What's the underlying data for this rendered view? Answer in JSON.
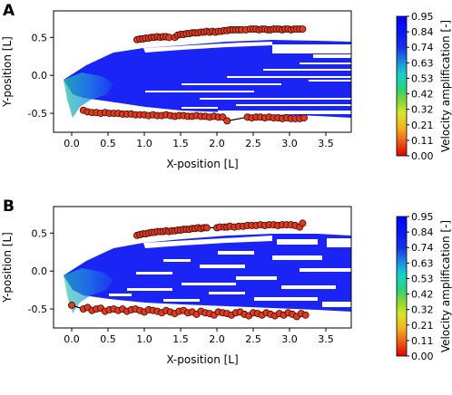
{
  "colorbar": {
    "label": "Velocity amplification [-]",
    "ticks": [
      "0.95",
      "0.84",
      "0.74",
      "0.63",
      "0.53",
      "0.42",
      "0.32",
      "0.21",
      "0.11",
      "0.00"
    ]
  },
  "chart_data": [
    {
      "type": "contour-scatter",
      "panel_label": "A",
      "xlabel": "X-position [L]",
      "ylabel": "Y-position [L]",
      "xlim": [
        -0.25,
        3.85
      ],
      "ylim": [
        -0.75,
        0.85
      ],
      "xticks": [
        "0.0",
        "0.5",
        "1.0",
        "1.5",
        "2.0",
        "2.5",
        "3.0",
        "3.5"
      ],
      "yticks": [
        "0.5",
        "0.0",
        "-0.5"
      ],
      "upper_points": {
        "x": [
          0.9,
          0.94,
          0.98,
          1.02,
          1.06,
          1.1,
          1.14,
          1.18,
          1.22,
          1.26,
          1.3,
          1.34,
          1.42,
          1.46,
          1.5,
          1.54,
          1.58,
          1.62,
          1.66,
          1.7,
          1.74,
          1.78,
          1.82,
          1.86,
          1.9,
          1.94,
          1.98,
          2.02,
          2.06,
          2.1,
          2.14,
          2.18,
          2.22,
          2.26,
          2.3,
          2.34,
          2.4,
          2.46,
          2.5,
          2.54,
          2.58,
          2.62,
          2.66,
          2.7,
          2.74,
          2.78,
          2.82,
          2.86,
          2.9,
          2.94,
          2.98,
          3.02,
          3.06,
          3.1,
          3.14,
          3.18
        ],
        "y": [
          0.47,
          0.48,
          0.48,
          0.49,
          0.49,
          0.5,
          0.5,
          0.51,
          0.5,
          0.51,
          0.51,
          0.5,
          0.5,
          0.53,
          0.54,
          0.54,
          0.55,
          0.55,
          0.56,
          0.56,
          0.56,
          0.57,
          0.57,
          0.58,
          0.57,
          0.58,
          0.57,
          0.58,
          0.58,
          0.59,
          0.59,
          0.6,
          0.6,
          0.6,
          0.6,
          0.6,
          0.6,
          0.61,
          0.61,
          0.61,
          0.6,
          0.61,
          0.61,
          0.6,
          0.6,
          0.61,
          0.61,
          0.61,
          0.6,
          0.61,
          0.61,
          0.6,
          0.61,
          0.61,
          0.61,
          0.61
        ]
      },
      "lower_points": {
        "x": [
          0.16,
          0.22,
          0.28,
          0.34,
          0.4,
          0.46,
          0.52,
          0.58,
          0.64,
          0.7,
          0.76,
          0.82,
          0.88,
          0.94,
          1.0,
          1.06,
          1.12,
          1.18,
          1.24,
          1.3,
          1.36,
          1.42,
          1.48,
          1.54,
          1.6,
          1.66,
          1.72,
          1.78,
          1.84,
          1.9,
          1.96,
          2.02,
          2.08,
          2.14,
          2.42,
          2.48,
          2.54,
          2.6,
          2.66,
          2.72,
          2.78,
          2.84,
          2.9,
          2.96,
          3.02,
          3.08,
          3.14,
          3.2
        ],
        "y": [
          -0.46,
          -0.48,
          -0.49,
          -0.49,
          -0.5,
          -0.49,
          -0.5,
          -0.5,
          -0.5,
          -0.51,
          -0.51,
          -0.51,
          -0.52,
          -0.52,
          -0.52,
          -0.53,
          -0.52,
          -0.53,
          -0.53,
          -0.52,
          -0.53,
          -0.54,
          -0.53,
          -0.53,
          -0.54,
          -0.54,
          -0.53,
          -0.54,
          -0.54,
          -0.55,
          -0.54,
          -0.55,
          -0.55,
          -0.6,
          -0.55,
          -0.56,
          -0.55,
          -0.55,
          -0.56,
          -0.55,
          -0.56,
          -0.56,
          -0.57,
          -0.56,
          -0.57,
          -0.57,
          -0.57,
          -0.56
        ]
      }
    },
    {
      "type": "contour-scatter",
      "panel_label": "B",
      "xlabel": "X-position [L]",
      "ylabel": "Y-position [L]",
      "xlim": [
        -0.25,
        3.85
      ],
      "ylim": [
        -0.75,
        0.85
      ],
      "xticks": [
        "0.0",
        "0.5",
        "1.0",
        "1.5",
        "2.0",
        "2.5",
        "3.0",
        "3.5"
      ],
      "yticks": [
        "0.5",
        "0.0",
        "-0.5"
      ],
      "upper_points": {
        "x": [
          0.9,
          0.94,
          0.98,
          1.02,
          1.06,
          1.1,
          1.14,
          1.18,
          1.22,
          1.26,
          1.3,
          1.34,
          1.38,
          1.42,
          1.46,
          1.5,
          1.54,
          1.58,
          1.62,
          1.66,
          1.7,
          1.74,
          1.78,
          1.82,
          1.86,
          2.0,
          2.04,
          2.1,
          2.14,
          2.18,
          2.24,
          2.3,
          2.36,
          2.42,
          2.48,
          2.54,
          2.6,
          2.66,
          2.72,
          2.78,
          2.84,
          2.9,
          2.96,
          3.02,
          3.08,
          3.14,
          3.18
        ],
        "y": [
          0.47,
          0.48,
          0.49,
          0.49,
          0.5,
          0.51,
          0.51,
          0.52,
          0.52,
          0.52,
          0.53,
          0.52,
          0.53,
          0.53,
          0.54,
          0.54,
          0.55,
          0.55,
          0.55,
          0.56,
          0.56,
          0.57,
          0.56,
          0.57,
          0.57,
          0.57,
          0.58,
          0.58,
          0.58,
          0.59,
          0.58,
          0.59,
          0.59,
          0.6,
          0.6,
          0.6,
          0.61,
          0.6,
          0.61,
          0.61,
          0.6,
          0.61,
          0.61,
          0.61,
          0.6,
          0.58,
          0.63
        ]
      },
      "lower_points": {
        "x": [
          0.0,
          0.16,
          0.22,
          0.28,
          0.34,
          0.4,
          0.46,
          0.52,
          0.58,
          0.64,
          0.7,
          0.76,
          0.82,
          0.88,
          0.94,
          1.0,
          1.06,
          1.12,
          1.18,
          1.24,
          1.3,
          1.36,
          1.42,
          1.48,
          1.54,
          1.6,
          1.66,
          1.72,
          1.78,
          1.84,
          1.9,
          1.96,
          2.02,
          2.08,
          2.14,
          2.2,
          2.26,
          2.32,
          2.38,
          2.44,
          2.5,
          2.56,
          2.62,
          2.68,
          2.74,
          2.8,
          2.86,
          2.92,
          2.98,
          3.04,
          3.1,
          3.16,
          3.22
        ],
        "y": [
          -0.45,
          -0.5,
          -0.48,
          -0.52,
          -0.5,
          -0.49,
          -0.53,
          -0.51,
          -0.5,
          -0.52,
          -0.5,
          -0.53,
          -0.51,
          -0.5,
          -0.52,
          -0.54,
          -0.51,
          -0.52,
          -0.53,
          -0.55,
          -0.52,
          -0.54,
          -0.56,
          -0.53,
          -0.52,
          -0.55,
          -0.54,
          -0.57,
          -0.53,
          -0.55,
          -0.56,
          -0.58,
          -0.54,
          -0.55,
          -0.56,
          -0.58,
          -0.55,
          -0.54,
          -0.57,
          -0.59,
          -0.55,
          -0.56,
          -0.58,
          -0.55,
          -0.57,
          -0.59,
          -0.56,
          -0.58,
          -0.55,
          -0.57,
          -0.6,
          -0.56,
          -0.58
        ]
      }
    }
  ]
}
